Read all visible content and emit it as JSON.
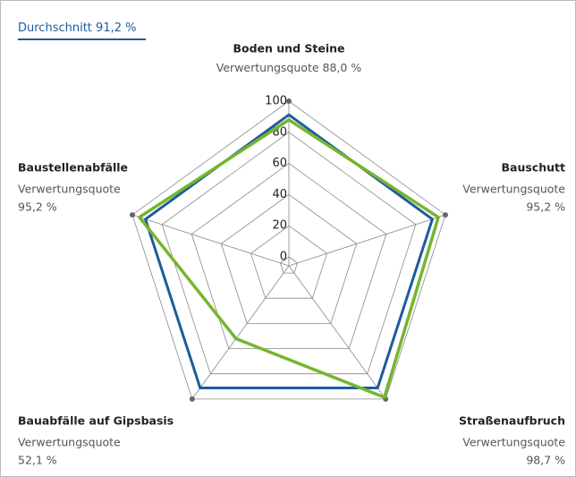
{
  "chart_data": {
    "type": "radar",
    "average": {
      "name": "Durchschnitt",
      "value": 91.2,
      "value_label": "91,2 %",
      "color": "#1d5c9c"
    },
    "categories": [
      "Boden und Steine",
      "Bauschutt",
      "Straßenaufbruch",
      "Bauabfälle auf Gipsbasis",
      "Baustellenabfälle"
    ],
    "series": [
      {
        "name": "Verwertungsquote",
        "color": "#76b52e",
        "values": [
          88.0,
          95.2,
          98.7,
          52.1,
          95.2
        ],
        "value_labels": [
          "88,0 %",
          "95,2 %",
          "98,7 %",
          "52,1 %",
          "95,2 %"
        ]
      }
    ],
    "rlim": [
      0,
      100
    ],
    "rticks": [
      0,
      20,
      40,
      60,
      80,
      100
    ],
    "grid": true
  }
}
